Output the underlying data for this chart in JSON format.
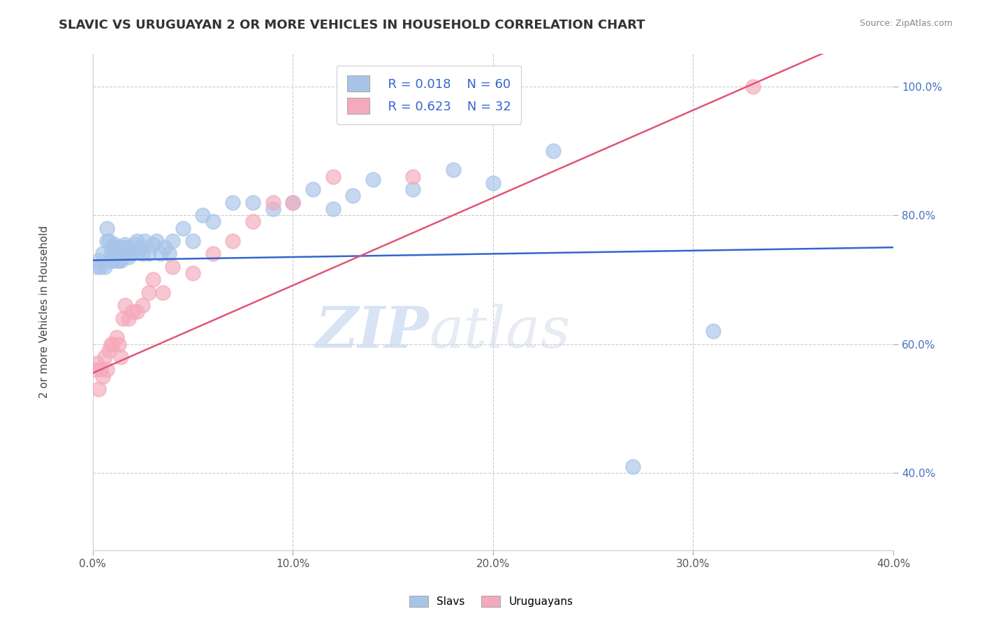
{
  "title": "SLAVIC VS URUGUAYAN 2 OR MORE VEHICLES IN HOUSEHOLD CORRELATION CHART",
  "source": "Source: ZipAtlas.com",
  "ylabel": "2 or more Vehicles in Household",
  "legend_labels": [
    "Slavs",
    "Uruguayans"
  ],
  "legend_r": [
    "R = 0.018",
    "R = 0.623"
  ],
  "legend_n": [
    "N = 60",
    "N = 32"
  ],
  "slavs_color": "#a8c4e8",
  "uruguayans_color": "#f4aabb",
  "slavs_line_color": "#3366cc",
  "uruguayans_line_color": "#e05575",
  "tick_color": "#4472c4",
  "background_color": "#ffffff",
  "watermark_zip": "ZIP",
  "watermark_atlas": "atlas",
  "xlim": [
    0.0,
    0.4
  ],
  "ylim": [
    0.28,
    1.05
  ],
  "xticks": [
    0.0,
    0.1,
    0.2,
    0.3,
    0.4
  ],
  "xtick_labels": [
    "0.0%",
    "10.0%",
    "20.0%",
    "30.0%",
    "40.0%"
  ],
  "yticks": [
    0.4,
    0.6,
    0.8,
    1.0
  ],
  "ytick_labels": [
    "40.0%",
    "60.0%",
    "80.0%",
    "100.0%"
  ],
  "slavs_x": [
    0.002,
    0.003,
    0.004,
    0.005,
    0.006,
    0.007,
    0.007,
    0.008,
    0.009,
    0.009,
    0.01,
    0.01,
    0.011,
    0.011,
    0.012,
    0.012,
    0.013,
    0.013,
    0.013,
    0.014,
    0.014,
    0.015,
    0.015,
    0.016,
    0.016,
    0.017,
    0.018,
    0.019,
    0.02,
    0.021,
    0.022,
    0.023,
    0.024,
    0.025,
    0.026,
    0.028,
    0.03,
    0.032,
    0.034,
    0.036,
    0.038,
    0.04,
    0.045,
    0.05,
    0.055,
    0.06,
    0.07,
    0.08,
    0.09,
    0.1,
    0.11,
    0.12,
    0.13,
    0.14,
    0.16,
    0.18,
    0.2,
    0.23,
    0.27,
    0.31
  ],
  "slavs_y": [
    0.72,
    0.73,
    0.72,
    0.74,
    0.72,
    0.76,
    0.78,
    0.76,
    0.73,
    0.74,
    0.75,
    0.73,
    0.755,
    0.735,
    0.73,
    0.75,
    0.75,
    0.74,
    0.73,
    0.74,
    0.73,
    0.75,
    0.74,
    0.755,
    0.745,
    0.75,
    0.735,
    0.74,
    0.745,
    0.755,
    0.76,
    0.745,
    0.75,
    0.74,
    0.76,
    0.74,
    0.755,
    0.76,
    0.74,
    0.75,
    0.74,
    0.76,
    0.78,
    0.76,
    0.8,
    0.79,
    0.82,
    0.82,
    0.81,
    0.82,
    0.84,
    0.81,
    0.83,
    0.855,
    0.84,
    0.87,
    0.85,
    0.9,
    0.41,
    0.62
  ],
  "uruguayans_x": [
    0.001,
    0.002,
    0.003,
    0.004,
    0.005,
    0.006,
    0.007,
    0.008,
    0.009,
    0.01,
    0.012,
    0.013,
    0.014,
    0.015,
    0.016,
    0.018,
    0.02,
    0.022,
    0.025,
    0.028,
    0.03,
    0.035,
    0.04,
    0.05,
    0.06,
    0.07,
    0.08,
    0.09,
    0.1,
    0.12,
    0.16,
    0.33
  ],
  "uruguayans_y": [
    0.56,
    0.57,
    0.53,
    0.56,
    0.55,
    0.58,
    0.56,
    0.59,
    0.6,
    0.6,
    0.61,
    0.6,
    0.58,
    0.64,
    0.66,
    0.64,
    0.65,
    0.65,
    0.66,
    0.68,
    0.7,
    0.68,
    0.72,
    0.71,
    0.74,
    0.76,
    0.79,
    0.82,
    0.82,
    0.86,
    0.86,
    1.0
  ],
  "slavs_line_intercept": 0.73,
  "slavs_line_slope": 0.05,
  "uruguayans_line_intercept": 0.555,
  "uruguayans_line_slope": 1.36
}
